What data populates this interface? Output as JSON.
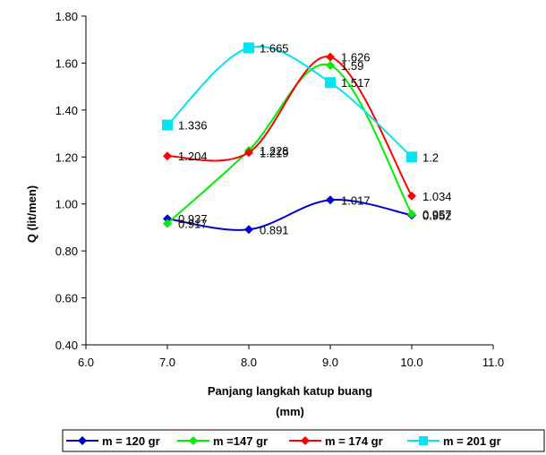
{
  "chart_data": {
    "type": "line",
    "xlabel": [
      "Panjang langkah katup buang",
      "(mm)"
    ],
    "ylabel": "Q (lit/men)",
    "xlim": [
      6.0,
      11.0
    ],
    "ylim": [
      0.4,
      1.8
    ],
    "x_ticks": [
      "6.0",
      "7.0",
      "8.0",
      "9.0",
      "10.0",
      "11.0"
    ],
    "y_ticks": [
      "0.40",
      "0.60",
      "0.80",
      "1.00",
      "1.20",
      "1.40",
      "1.60",
      "1.80"
    ],
    "x": [
      7,
      8,
      9,
      10
    ],
    "grid": false,
    "legend_position": "bottom",
    "series": [
      {
        "name": "m = 120 gr",
        "color": "#0000cc",
        "marker": "diamond",
        "values": [
          0.937,
          0.891,
          1.017,
          0.952
        ],
        "labels": [
          "0.937",
          "0.891",
          "1.017",
          "0.952"
        ]
      },
      {
        "name": "m =147 gr",
        "color": "#00ee00",
        "marker": "diamond",
        "values": [
          0.917,
          1.228,
          1.59,
          0.957
        ],
        "labels": [
          "0.917",
          "1.228",
          "1.59",
          "0.957"
        ]
      },
      {
        "name": "m = 174 gr",
        "color": "#ff0000",
        "marker": "diamond",
        "values": [
          1.204,
          1.219,
          1.626,
          1.034
        ],
        "labels": [
          "1.204",
          "1.219",
          "1.626",
          "1.034"
        ]
      },
      {
        "name": "m = 201 gr",
        "color": "#00e5ee",
        "marker": "square",
        "values": [
          1.336,
          1.665,
          1.517,
          1.2
        ],
        "labels": [
          "1.336",
          "1.665",
          "1.517",
          "1.2"
        ]
      }
    ]
  }
}
